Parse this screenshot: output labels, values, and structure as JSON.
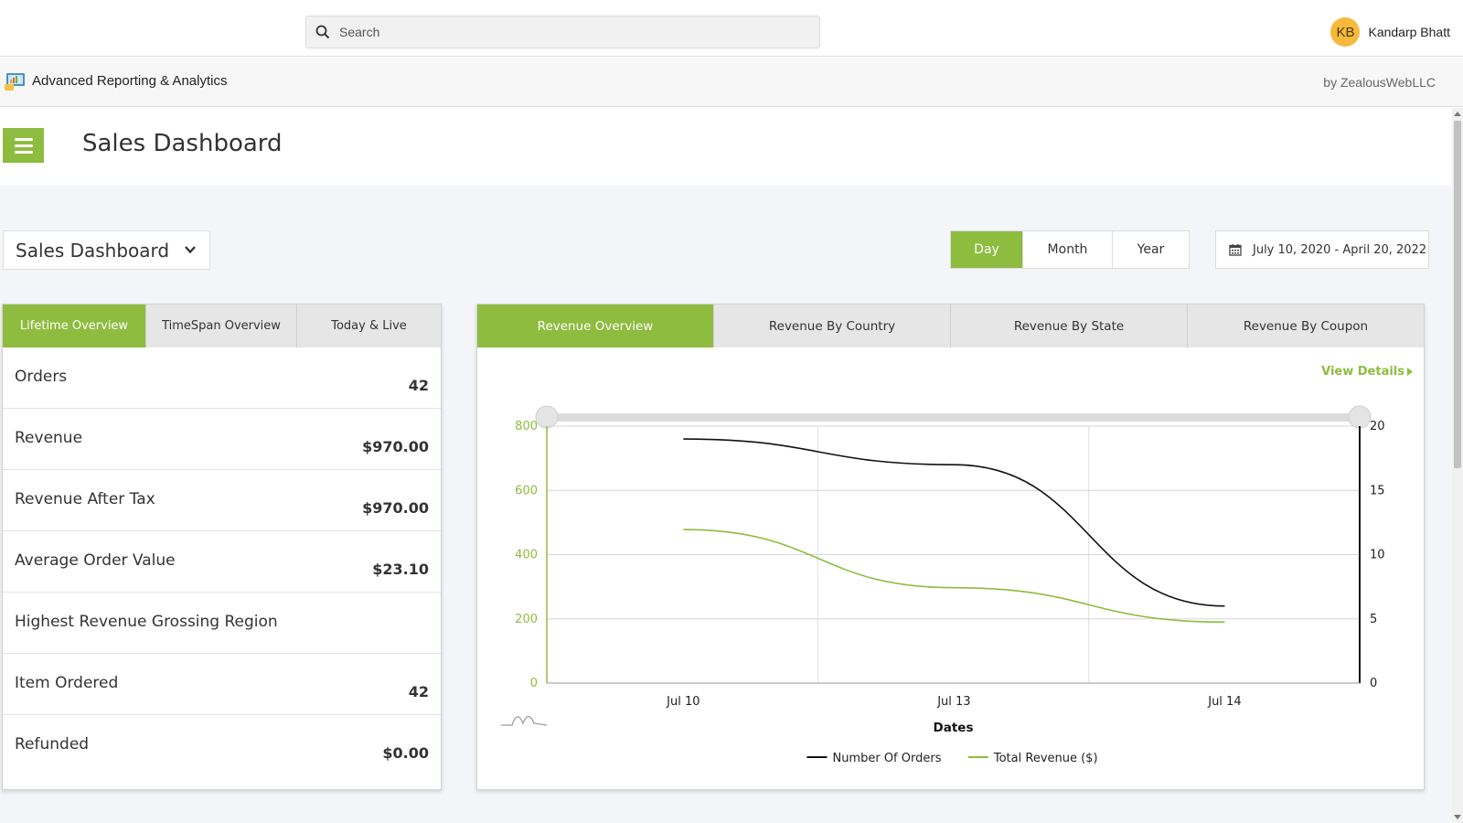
{
  "topbar": {
    "search_placeholder": "Search",
    "user_initials": "KB",
    "user_name": "Kandarp Bhatt"
  },
  "app": {
    "title": "Advanced Reporting & Analytics",
    "vendor": "by ZealousWebLLC"
  },
  "page": {
    "title": "Sales Dashboard"
  },
  "controls": {
    "dashboard_select": "Sales Dashboard",
    "periods": [
      "Day",
      "Month",
      "Year"
    ],
    "active_period": "Day",
    "date_range": "July 10, 2020 - April 20, 2022"
  },
  "overview": {
    "tabs": [
      "Lifetime Overview",
      "TimeSpan Overview",
      "Today & Live"
    ],
    "active_tab": "Lifetime Overview",
    "metrics": [
      {
        "label": "Orders",
        "value": "42"
      },
      {
        "label": "Revenue",
        "value": "$970.00"
      },
      {
        "label": "Revenue After Tax",
        "value": "$970.00"
      },
      {
        "label": "Average Order Value",
        "value": "$23.10"
      },
      {
        "label": "Highest Revenue Grossing Region",
        "value": ""
      },
      {
        "label": "Item Ordered",
        "value": "42"
      },
      {
        "label": "Refunded",
        "value": "$0.00"
      }
    ]
  },
  "revenue": {
    "tabs": [
      "Revenue Overview",
      "Revenue By Country",
      "Revenue By State",
      "Revenue By Coupon"
    ],
    "active_tab": "Revenue Overview",
    "view_details": "View Details"
  },
  "colors": {
    "accent": "#8dbc3f",
    "orders_line": "#111111",
    "revenue_line": "#8dbc3f"
  },
  "chart_data": {
    "type": "line",
    "xlabel": "Dates",
    "x_ticks": [
      "Jul 10",
      "Jul 13",
      "Jul 14"
    ],
    "ylim_left": [
      0,
      800
    ],
    "yticks_left": [
      0,
      200,
      400,
      600,
      800
    ],
    "ylim_right": [
      0,
      20
    ],
    "yticks_right": [
      0,
      5,
      10,
      15,
      20
    ],
    "grid": true,
    "legend_position": "bottom",
    "series": [
      {
        "name": "Number Of Orders",
        "axis": "right",
        "color": "#111111",
        "x": [
          "Jul 10",
          "Jul 13",
          "Jul 14"
        ],
        "values": [
          19,
          17,
          6
        ]
      },
      {
        "name": "Total Revenue ($)",
        "axis": "left",
        "color": "#8dbc3f",
        "x": [
          "Jul 10",
          "Jul 13",
          "Jul 14"
        ],
        "values": [
          478,
          297,
          190
        ]
      }
    ]
  }
}
